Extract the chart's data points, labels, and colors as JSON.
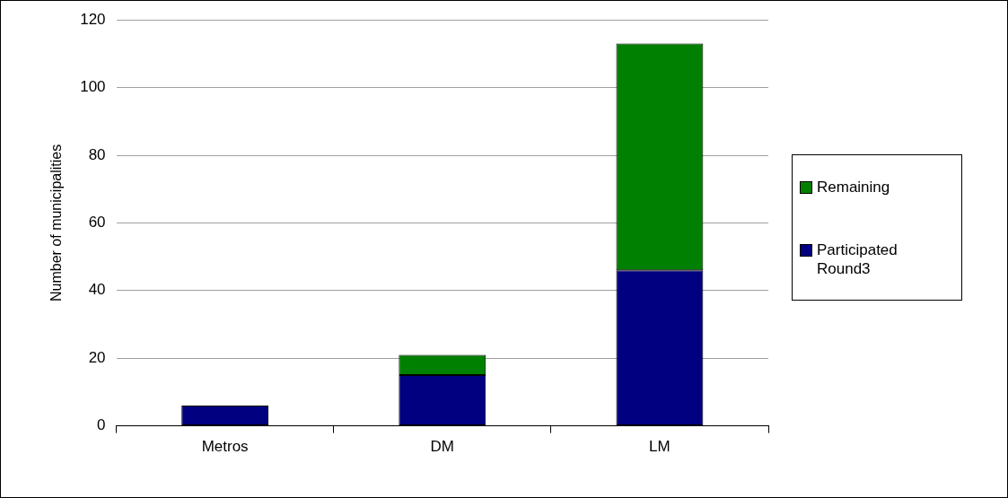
{
  "chart_data": {
    "type": "bar",
    "stacked": true,
    "ylabel": "Number of municipalities",
    "categories": [
      "Metros",
      "DM",
      "LM"
    ],
    "series": [
      {
        "name": "Participated Round3",
        "color": "#000080",
        "values": [
          6,
          15,
          46
        ]
      },
      {
        "name": "Remaining",
        "color": "#008000",
        "values": [
          0,
          6,
          67
        ]
      }
    ],
    "ylim": [
      0,
      120
    ],
    "yticks": [
      0,
      20,
      40,
      60,
      80,
      100,
      120
    ],
    "grid": "y",
    "legend": "right"
  }
}
